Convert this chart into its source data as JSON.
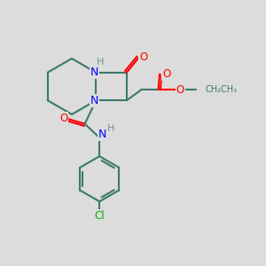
{
  "background_color": "#dcdcdc",
  "bond_color": "#3a7a6a",
  "bond_width": 1.5,
  "N_color": "#0000ff",
  "O_color": "#ff0000",
  "Cl_color": "#00aa00",
  "H_color": "#669999",
  "C_color": "#3a7a6a",
  "text_fontsize": 9,
  "fig_width": 3.0,
  "fig_height": 3.0,
  "dpi": 100,
  "xlim": [
    0,
    10
  ],
  "ylim": [
    0,
    10
  ]
}
